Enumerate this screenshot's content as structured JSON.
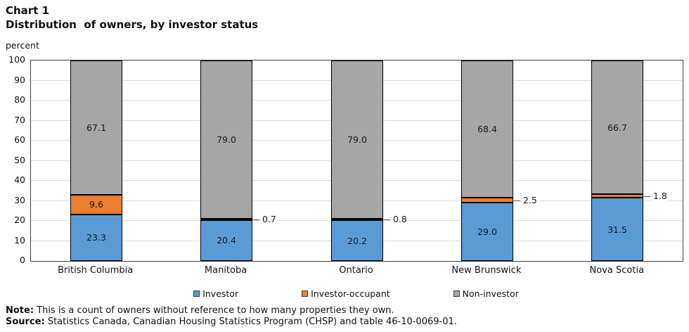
{
  "header": {
    "chart_label": "Chart 1",
    "title": "Distribution  of owners, by investor status",
    "unit_label": "percent"
  },
  "chart_data": {
    "type": "bar",
    "stacked": true,
    "categories": [
      "British Columbia",
      "Manitoba",
      "Ontario",
      "New Brunswick",
      "Nova Scotia"
    ],
    "series": [
      {
        "name": "Investor",
        "color": "#5B9BD5",
        "values": [
          23.3,
          20.4,
          20.2,
          29.0,
          31.5
        ]
      },
      {
        "name": "Investor-occupant",
        "color": "#ED7D31",
        "values": [
          9.6,
          0.7,
          0.8,
          2.5,
          1.8
        ]
      },
      {
        "name": "Non-investor",
        "color": "#A6A6A6",
        "values": [
          67.1,
          79.0,
          79.0,
          68.4,
          66.7
        ]
      }
    ],
    "ylabel": "percent",
    "ylim": [
      0,
      100
    ],
    "ytick_step": 10,
    "grid": true,
    "legend_position": "bottom",
    "value_labels": true,
    "outside_label_threshold": 4,
    "segment_border_color": "#000000",
    "gridline_color": "#DBDBDB",
    "plot_border_color": "#404040"
  },
  "footer": {
    "note_label": "Note:",
    "note_text": "This is a count of owners without reference to how many properties they own.",
    "source_label": "Source:",
    "source_text": "Statistics Canada, Canadian Housing Statistics Program (CHSP) and table 46-10-0069-01."
  }
}
